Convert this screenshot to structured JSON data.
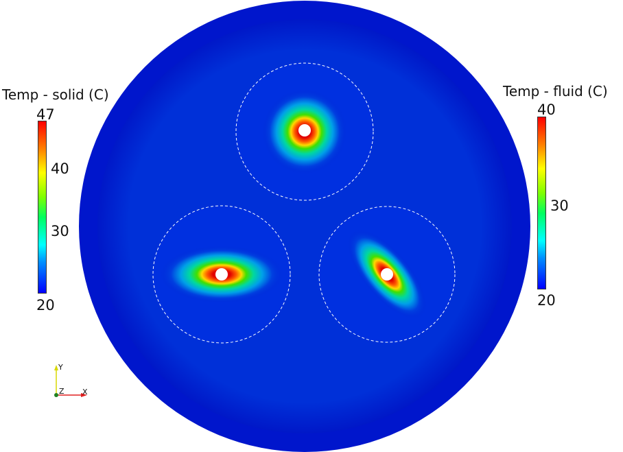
{
  "colorbars": {
    "solid": {
      "title": "Temp - solid (C)",
      "min": 20,
      "max": 47,
      "ticks": [
        "47",
        "40",
        "30",
        "20"
      ]
    },
    "fluid": {
      "title": "Temp - fluid (C)",
      "min": 20,
      "max": 40,
      "ticks": [
        "40",
        "30",
        "20"
      ]
    }
  },
  "axes_triad": {
    "y": "Y",
    "z": "Z",
    "x": "X"
  },
  "colors": {
    "background_field": "#0019d0",
    "hot": "#e40000",
    "axis_y": "#e8e800",
    "axis_x": "#e02020",
    "axis_z": "#208020"
  }
}
